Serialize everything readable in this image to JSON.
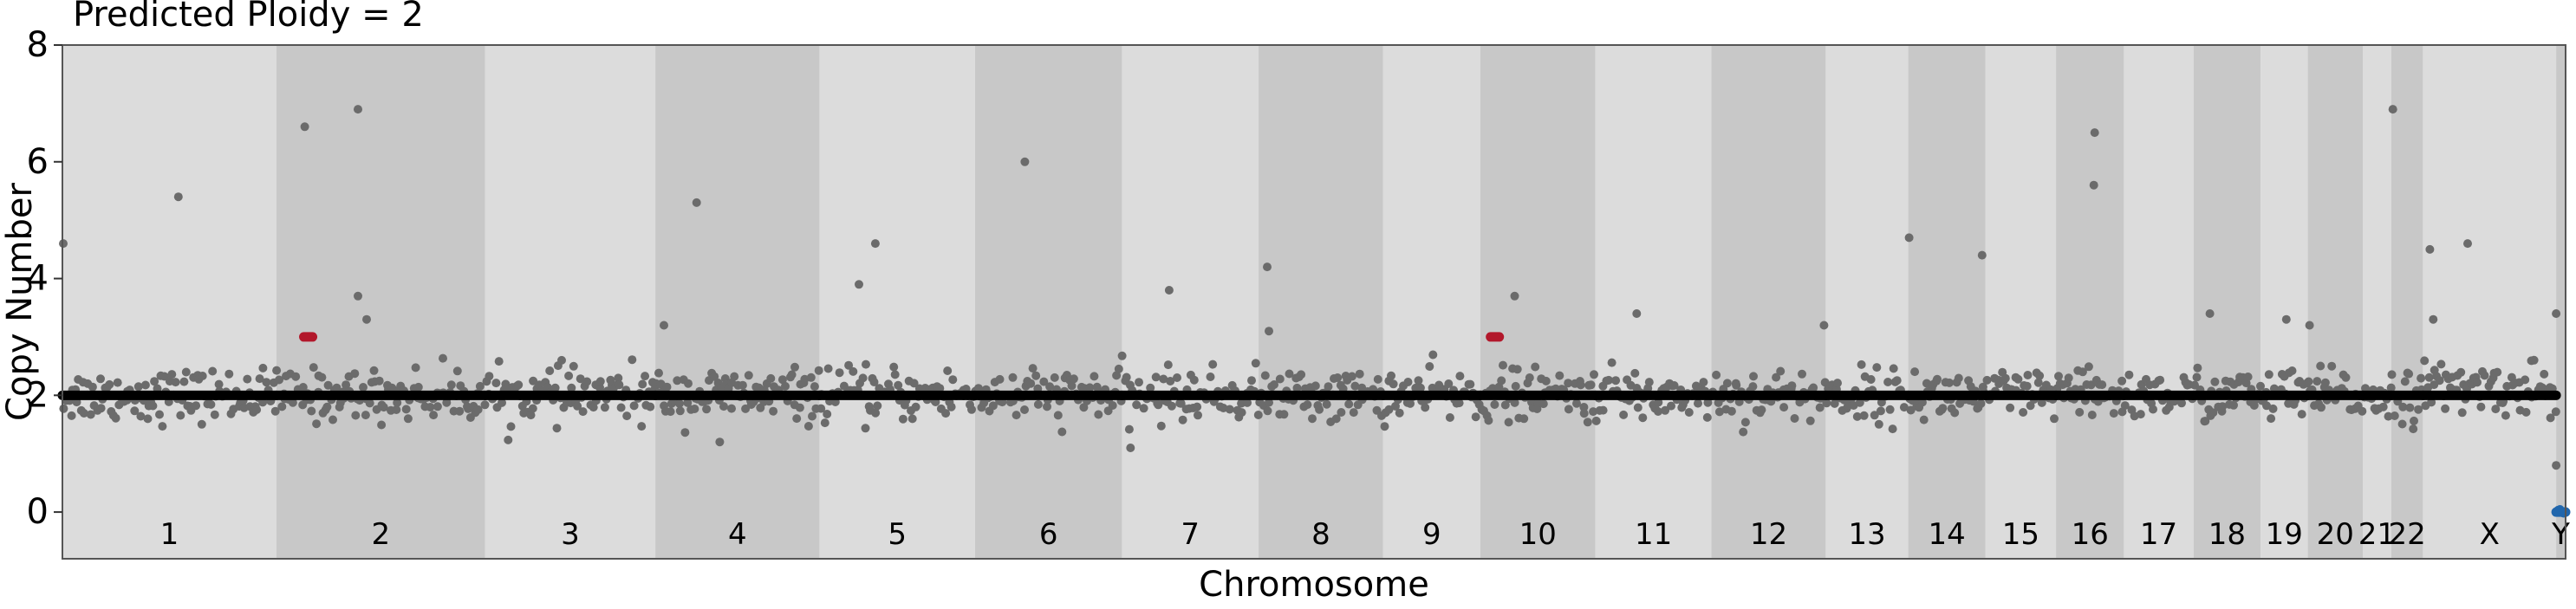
{
  "chart_data": {
    "type": "scatter",
    "title": "Predicted Ploidy = 2",
    "xlabel": "Chromosome",
    "ylabel": "Copy Number",
    "ylim": [
      -0.8,
      8
    ],
    "yticks": [
      0,
      2,
      4,
      6,
      8
    ],
    "grid": false,
    "legend": "none",
    "colors": {
      "band_light": "#dcdcdc",
      "band_dark": "#c8c8c8",
      "bin_points": "#6b6b6b",
      "segment_line": "#000000",
      "gain": "#b2182b",
      "loss": "#2166ac"
    },
    "chromosomes": [
      {
        "label": "1",
        "size": 249
      },
      {
        "label": "2",
        "size": 243
      },
      {
        "label": "3",
        "size": 198
      },
      {
        "label": "4",
        "size": 191
      },
      {
        "label": "5",
        "size": 181
      },
      {
        "label": "6",
        "size": 171
      },
      {
        "label": "7",
        "size": 159
      },
      {
        "label": "8",
        "size": 145
      },
      {
        "label": "9",
        "size": 113
      },
      {
        "label": "10",
        "size": 134
      },
      {
        "label": "11",
        "size": 135
      },
      {
        "label": "12",
        "size": 133
      },
      {
        "label": "13",
        "size": 96
      },
      {
        "label": "14",
        "size": 90
      },
      {
        "label": "15",
        "size": 82
      },
      {
        "label": "16",
        "size": 79
      },
      {
        "label": "17",
        "size": 81
      },
      {
        "label": "18",
        "size": 78
      },
      {
        "label": "19",
        "size": 55
      },
      {
        "label": "20",
        "size": 64
      },
      {
        "label": "21",
        "size": 33
      },
      {
        "label": "22",
        "size": 37
      },
      {
        "label": "X",
        "size": 155
      },
      {
        "label": "Y",
        "size": 11
      }
    ],
    "baseline_copy_number": 2,
    "segments": [
      {
        "chromosome": "1",
        "copy_number": 2
      },
      {
        "chromosome": "2",
        "copy_number": 2
      },
      {
        "chromosome": "3",
        "copy_number": 2
      },
      {
        "chromosome": "4",
        "copy_number": 2
      },
      {
        "chromosome": "5",
        "copy_number": 2
      },
      {
        "chromosome": "6",
        "copy_number": 2
      },
      {
        "chromosome": "7",
        "copy_number": 2
      },
      {
        "chromosome": "8",
        "copy_number": 2
      },
      {
        "chromosome": "9",
        "copy_number": 2
      },
      {
        "chromosome": "10",
        "copy_number": 2
      },
      {
        "chromosome": "11",
        "copy_number": 2
      },
      {
        "chromosome": "12",
        "copy_number": 2
      },
      {
        "chromosome": "13",
        "copy_number": 2
      },
      {
        "chromosome": "14",
        "copy_number": 2
      },
      {
        "chromosome": "15",
        "copy_number": 2
      },
      {
        "chromosome": "16",
        "copy_number": 2
      },
      {
        "chromosome": "17",
        "copy_number": 2
      },
      {
        "chromosome": "18",
        "copy_number": 2
      },
      {
        "chromosome": "19",
        "copy_number": 2
      },
      {
        "chromosome": "20",
        "copy_number": 2
      },
      {
        "chromosome": "21",
        "copy_number": 2
      },
      {
        "chromosome": "22",
        "copy_number": 2
      },
      {
        "chromosome": "X",
        "copy_number": 2
      },
      {
        "chromosome": "Y",
        "copy_number": 0
      }
    ],
    "focal_calls": [
      {
        "chromosome": "2",
        "position_mb": 37,
        "copy_number": 3,
        "call": "gain"
      },
      {
        "chromosome": "10",
        "position_mb": 17,
        "copy_number": 3,
        "call": "gain"
      }
    ],
    "outliers": [
      {
        "chromosome": "1",
        "position_mb": 1,
        "copy_number": 4.6
      },
      {
        "chromosome": "1",
        "position_mb": 135,
        "copy_number": 5.4
      },
      {
        "chromosome": "2",
        "position_mb": 33,
        "copy_number": 6.6
      },
      {
        "chromosome": "2",
        "position_mb": 95,
        "copy_number": 6.9
      },
      {
        "chromosome": "2",
        "position_mb": 95,
        "copy_number": 3.7
      },
      {
        "chromosome": "2",
        "position_mb": 105,
        "copy_number": 3.3
      },
      {
        "chromosome": "4",
        "position_mb": 48,
        "copy_number": 5.3
      },
      {
        "chromosome": "4",
        "position_mb": 10,
        "copy_number": 3.2
      },
      {
        "chromosome": "5",
        "position_mb": 46,
        "copy_number": 3.9
      },
      {
        "chromosome": "5",
        "position_mb": 65,
        "copy_number": 4.6
      },
      {
        "chromosome": "6",
        "position_mb": 58,
        "copy_number": 6.0
      },
      {
        "chromosome": "7",
        "position_mb": 55,
        "copy_number": 3.8
      },
      {
        "chromosome": "8",
        "position_mb": 10,
        "copy_number": 4.2
      },
      {
        "chromosome": "8",
        "position_mb": 12,
        "copy_number": 3.1
      },
      {
        "chromosome": "10",
        "position_mb": 40,
        "copy_number": 3.7
      },
      {
        "chromosome": "11",
        "position_mb": 48,
        "copy_number": 3.4
      },
      {
        "chromosome": "12",
        "position_mb": 131,
        "copy_number": 3.2
      },
      {
        "chromosome": "14",
        "position_mb": 1,
        "copy_number": 4.7
      },
      {
        "chromosome": "14",
        "position_mb": 86,
        "copy_number": 4.4
      },
      {
        "chromosome": "16",
        "position_mb": 45,
        "copy_number": 6.5
      },
      {
        "chromosome": "16",
        "position_mb": 44,
        "copy_number": 5.6
      },
      {
        "chromosome": "18",
        "position_mb": 19,
        "copy_number": 3.4
      },
      {
        "chromosome": "19",
        "position_mb": 30,
        "copy_number": 3.3
      },
      {
        "chromosome": "20",
        "position_mb": 2,
        "copy_number": 3.2
      },
      {
        "chromosome": "22",
        "position_mb": 2,
        "copy_number": 6.9
      },
      {
        "chromosome": "X",
        "position_mb": 8,
        "copy_number": 4.5
      },
      {
        "chromosome": "X",
        "position_mb": 52,
        "copy_number": 4.6
      },
      {
        "chromosome": "X",
        "position_mb": 12,
        "copy_number": 3.3
      },
      {
        "chromosome": "X",
        "position_mb": 155,
        "copy_number": 3.4
      },
      {
        "chromosome": "7",
        "position_mb": 10,
        "copy_number": 1.1
      },
      {
        "chromosome": "4",
        "position_mb": 75,
        "copy_number": 1.2
      },
      {
        "chromosome": "X",
        "position_mb": 155,
        "copy_number": 0.8
      }
    ],
    "bin_noise": {
      "sd": 0.22,
      "bins_per_mb": 0.45
    }
  }
}
